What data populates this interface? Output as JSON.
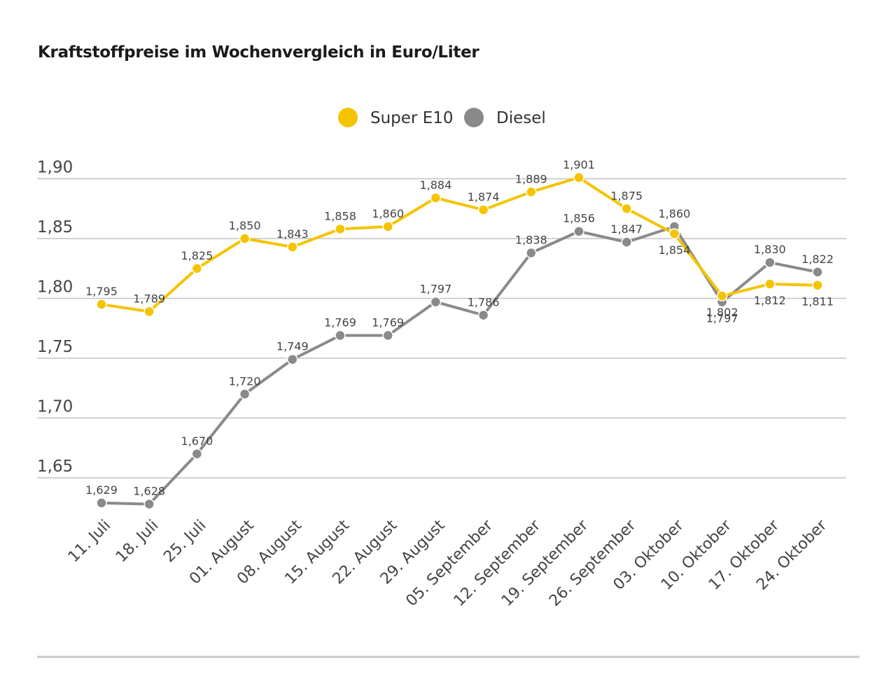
{
  "chart_data": {
    "type": "line",
    "title": "Kraftstoffpreise im Wochenvergleich in Euro/Liter",
    "categories": [
      "11. Juli",
      "18. Juli",
      "25. Juli",
      "01. August",
      "08. August",
      "15. August",
      "22. August",
      "29. August",
      "05. September",
      "12. September",
      "19. September",
      "26. September",
      "03. Oktober",
      "10. Oktober",
      "17. Oktober",
      "24. Oktober"
    ],
    "series": [
      {
        "name": "Super E10",
        "color": "#f5c400",
        "values": [
          1.795,
          1.789,
          1.825,
          1.85,
          1.843,
          1.858,
          1.86,
          1.884,
          1.874,
          1.889,
          1.901,
          1.875,
          1.854,
          1.802,
          1.812,
          1.811
        ],
        "labels": [
          "1,795",
          "1,789",
          "1,825",
          "1,850",
          "1,843",
          "1,858",
          "1,860",
          "1,884",
          "1,874",
          "1,889",
          "1,901",
          "1,875",
          "1,854",
          "1,802",
          "1,812",
          "1,811"
        ]
      },
      {
        "name": "Diesel",
        "color": "#8a8a8a",
        "values": [
          1.629,
          1.628,
          1.67,
          1.72,
          1.749,
          1.769,
          1.769,
          1.797,
          1.786,
          1.838,
          1.856,
          1.847,
          1.86,
          1.797,
          1.83,
          1.822
        ],
        "labels": [
          "1,629",
          "1,628",
          "1,670",
          "1,720",
          "1,749",
          "1,769",
          "1,769",
          "1,797",
          "1,786",
          "1,838",
          "1,856",
          "1,847",
          "1,860",
          "1,797",
          "1,830",
          "1,822"
        ]
      }
    ],
    "yticks": [
      1.65,
      1.7,
      1.75,
      1.8,
      1.85,
      1.9
    ],
    "ytick_labels": [
      "1,65",
      "1,70",
      "1,75",
      "1,80",
      "1,85",
      "1,90"
    ],
    "ylim": [
      1.65,
      1.9
    ],
    "grid": true,
    "legend": "top-center",
    "bottom_rule_color": "#c8c8c8"
  }
}
